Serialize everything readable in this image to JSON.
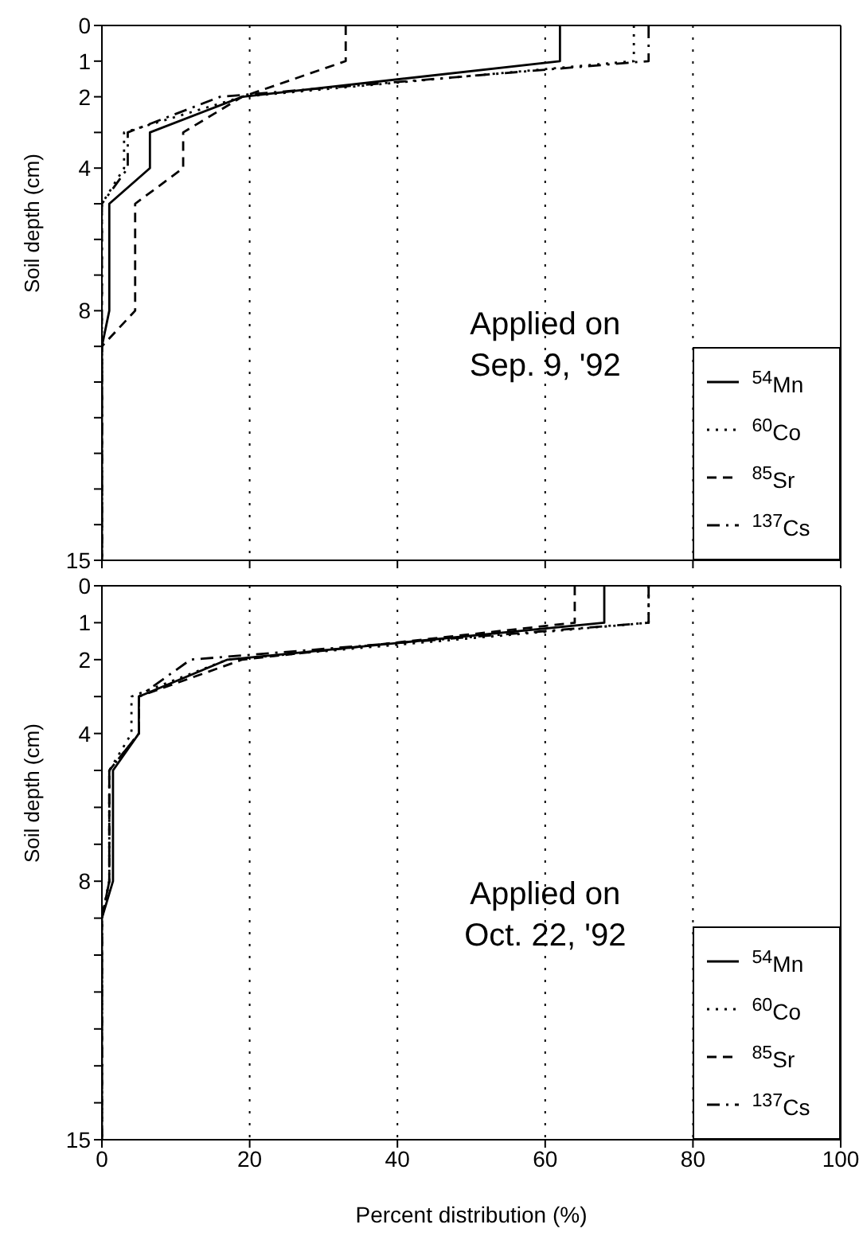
{
  "chart_data": [
    {
      "type": "line",
      "ylabel": "Soil depth (cm)",
      "annotations": [
        "Applied on\nSep. 9, '92"
      ],
      "xlim": [
        0,
        100
      ],
      "xticks": [
        0,
        20,
        40,
        60,
        80,
        100
      ],
      "ylim": [
        15,
        0
      ],
      "yticks": [
        0,
        1,
        2,
        {
          "value": 3,
          "label": null
        },
        4,
        {
          "value": 5,
          "label": null
        },
        {
          "value": 6,
          "label": null
        },
        {
          "value": 7,
          "label": null
        },
        8,
        {
          "value": 9,
          "label": null
        },
        {
          "value": 10,
          "label": null
        },
        {
          "value": 11,
          "label": null
        },
        {
          "value": 12,
          "label": null
        },
        {
          "value": 13,
          "label": null
        },
        {
          "value": 14,
          "label": null
        },
        15
      ],
      "tick_labels": "y",
      "grid": "x",
      "legend": "bottom right",
      "marker": "none",
      "series": [
        {
          "name": "$^{54}$Mn",
          "color": "#000000",
          "line_style": "solid",
          "x": [
            62,
            62,
            19,
            6.5,
            6.5,
            1,
            1,
            0,
            0
          ],
          "values": [
            0,
            1,
            2,
            3,
            4,
            5,
            8,
            9,
            15
          ]
        },
        {
          "name": "$^{60}$Co",
          "color": "#000000",
          "line_style": "dotted",
          "x": [
            72,
            72,
            19,
            3,
            3,
            0,
            0,
            0,
            0
          ],
          "values": [
            0,
            1,
            2,
            3,
            4,
            5,
            8,
            9,
            15
          ]
        },
        {
          "name": "$^{85}$Sr",
          "color": "#000000",
          "line_style": "dashed",
          "x": [
            33,
            33,
            19,
            11,
            11,
            4.5,
            4.5,
            0,
            0
          ],
          "values": [
            0,
            1,
            2,
            3,
            4,
            5,
            8,
            9,
            15
          ]
        },
        {
          "name": "$^{137}$Cs",
          "color": "#000000",
          "line_style": "dashdot",
          "x": [
            74,
            74,
            16,
            3.5,
            3.5,
            0,
            0,
            0,
            0
          ],
          "values": [
            0,
            1,
            2,
            3,
            4,
            5,
            8,
            9,
            15
          ]
        }
      ]
    },
    {
      "type": "line",
      "xlabel": "Percent distribution (%)",
      "ylabel": "Soil depth (cm)",
      "annotations": [
        "Applied on\nOct. 22, '92"
      ],
      "xlim": [
        0,
        100
      ],
      "xticks": [
        0,
        20,
        40,
        60,
        80,
        100
      ],
      "ylim": [
        15,
        0
      ],
      "yticks": [
        0,
        1,
        2,
        {
          "value": 3,
          "label": null
        },
        4,
        {
          "value": 5,
          "label": null
        },
        {
          "value": 6,
          "label": null
        },
        {
          "value": 7,
          "label": null
        },
        8,
        {
          "value": 9,
          "label": null
        },
        {
          "value": 10,
          "label": null
        },
        {
          "value": 11,
          "label": null
        },
        {
          "value": 12,
          "label": null
        },
        {
          "value": 13,
          "label": null
        },
        {
          "value": 14,
          "label": null
        },
        15
      ],
      "grid": "x",
      "legend": "bottom right",
      "marker": "none",
      "series": [
        {
          "name": "$^{54}$Mn",
          "color": "#000000",
          "line_style": "solid",
          "x": [
            68,
            68,
            17,
            5,
            5,
            1.5,
            1.5,
            0,
            0
          ],
          "values": [
            0,
            1,
            2,
            3,
            4,
            5,
            8,
            9,
            15
          ]
        },
        {
          "name": "$^{60}$Co",
          "color": "#000000",
          "line_style": "dotted",
          "x": [
            74,
            74,
            17,
            4,
            4,
            1,
            1,
            0,
            0
          ],
          "values": [
            0,
            1,
            2,
            3,
            4,
            5,
            8,
            9,
            15
          ]
        },
        {
          "name": "$^{85}$Sr",
          "color": "#000000",
          "line_style": "dashed",
          "x": [
            64,
            64,
            19,
            5,
            5,
            1,
            1,
            0,
            0
          ],
          "values": [
            0,
            1,
            2,
            3,
            4,
            5,
            8,
            9,
            15
          ]
        },
        {
          "name": "$^{137}$Cs",
          "color": "#000000",
          "line_style": "dashdot",
          "x": [
            74,
            74,
            12,
            5,
            5,
            1,
            1,
            0,
            0
          ],
          "values": [
            0,
            1,
            2,
            3,
            4,
            5,
            8,
            9,
            15
          ]
        }
      ]
    }
  ]
}
